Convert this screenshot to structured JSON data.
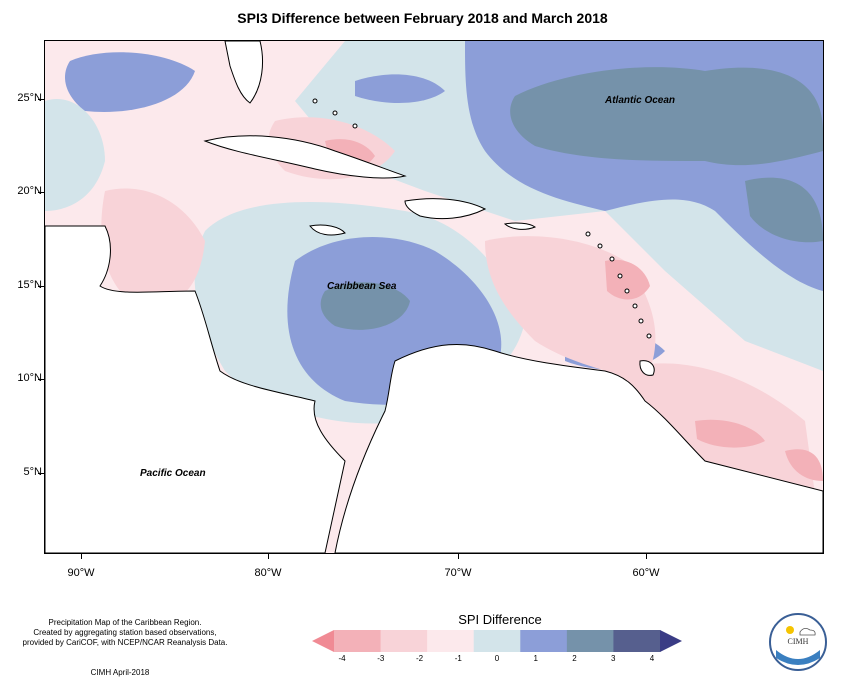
{
  "title": "SPI3 Difference between February 2018 and March 2018",
  "y_axis_labels": [
    "25°N",
    "20°N",
    "15°N",
    "10°N",
    "5°N"
  ],
  "x_axis_labels": [
    "90°W",
    "80°W",
    "70°W",
    "60°W"
  ],
  "ocean_labels": {
    "atlantic": "Atlantic Ocean",
    "caribbean": "Caribbean Sea",
    "pacific": "Pacific Ocean"
  },
  "footer": {
    "line1": "Precipitation Map of the Caribbean Region.",
    "line2": "Created by aggregating station based observations,",
    "line3": "provided by CariCOF, with NCEP/NCAR Reanalysis Data.",
    "credit": "CIMH April-2018"
  },
  "legend": {
    "title": "SPI Difference",
    "ticks": [
      "-4",
      "-3",
      "-2",
      "-1",
      "0",
      "1",
      "2",
      "3",
      "4"
    ],
    "colors": [
      "#f08a94",
      "#f3b1b8",
      "#f8d3d8",
      "#fce9ec",
      "#d3e4ea",
      "#8c9ed8",
      "#7592aa",
      "#565f8e",
      "#3a3c85"
    ]
  },
  "logo": {
    "text": "CIMH"
  },
  "colors": {
    "land": "#ffffff",
    "neg_strong": "#f3b1b8",
    "neg_light": "#f8d3d8",
    "neutral_pos": "#d3e4ea",
    "pos_1": "#8c9ed8",
    "pos_2": "#7592aa"
  }
}
